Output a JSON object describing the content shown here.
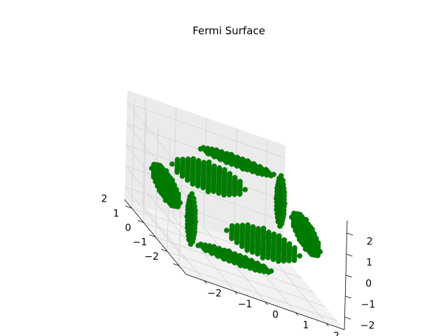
{
  "chart_data": {
    "type": "scatter",
    "projection": "3d",
    "title": "Fermi Surface",
    "xlabel": "",
    "ylabel": "",
    "zlabel": "",
    "xlim": [
      -2.6,
      2.6
    ],
    "ylim": [
      -2.6,
      2.6
    ],
    "zlim": [
      -2.6,
      2.6
    ],
    "x_ticks": [
      "−2",
      "−1",
      "0",
      "1",
      "2"
    ],
    "y_ticks": [
      "−2",
      "−1",
      "0",
      "1",
      "2"
    ],
    "z_ticks": [
      "−2",
      "−1",
      "0",
      "1",
      "2"
    ],
    "grid": true,
    "marker_color": "#008000",
    "series": [
      {
        "clusters": [
          {
            "center": [
              0,
              0,
              -2.3
            ],
            "axes": [
              [
                1.2,
                0,
                0
              ],
              [
                0,
                0.5,
                0
              ]
            ]
          },
          {
            "center": [
              0,
              0,
              2.3
            ],
            "axes": [
              [
                1.2,
                0,
                0
              ],
              [
                0,
                0.5,
                0
              ]
            ]
          },
          {
            "center": [
              -2.3,
              0,
              0
            ],
            "axes": [
              [
                0,
                1.2,
                0
              ],
              [
                0,
                0,
                0.7
              ]
            ]
          },
          {
            "center": [
              2.3,
              0,
              0
            ],
            "axes": [
              [
                0,
                1.2,
                0
              ],
              [
                0,
                0,
                0.7
              ]
            ]
          },
          {
            "center": [
              0,
              -2.3,
              0
            ],
            "axes": [
              [
                1.2,
                0,
                0
              ],
              [
                0,
                0,
                0.7
              ]
            ]
          },
          {
            "center": [
              0,
              2.3,
              0
            ],
            "axes": [
              [
                1.2,
                0,
                0
              ],
              [
                0,
                0,
                0.7
              ]
            ]
          },
          {
            "center": [
              2.4,
              2.4,
              0
            ],
            "axes": [
              [
                0,
                0,
                1.2
              ],
              [
                0.1,
                -0.1,
                0
              ]
            ]
          },
          {
            "center": [
              -2.4,
              -2.4,
              0
            ],
            "axes": [
              [
                0,
                0,
                1.2
              ],
              [
                0.1,
                -0.1,
                0
              ]
            ]
          }
        ]
      }
    ]
  }
}
